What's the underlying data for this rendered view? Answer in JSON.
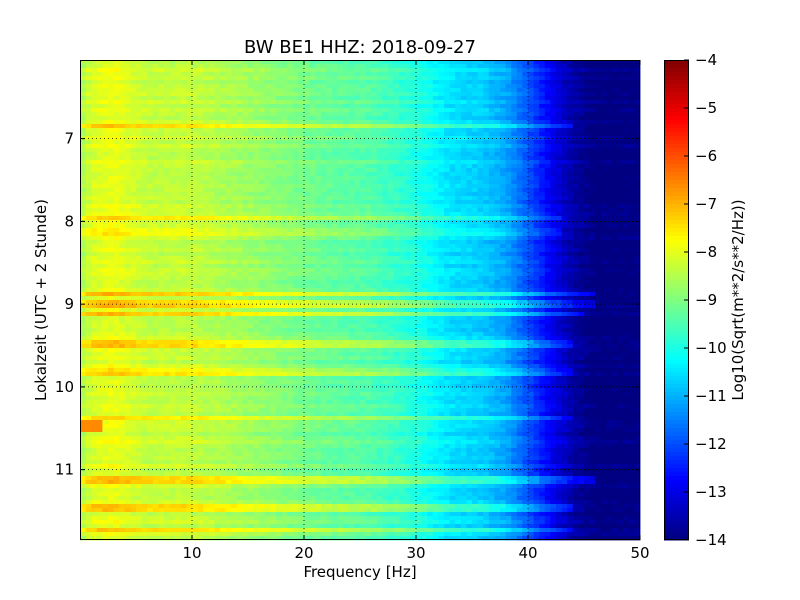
{
  "chart_data": {
    "type": "heatmap",
    "title": "BW BE1 HHZ: 2018-09-27",
    "xlabel": "Frequency [Hz]",
    "ylabel": "Lokalzeit (UTC + 2 Stunde)",
    "xlim": [
      0,
      50
    ],
    "ylim": [
      6.05,
      11.85
    ],
    "y_inverted": true,
    "x_ticks": [
      10,
      20,
      30,
      40,
      50
    ],
    "y_ticks": [
      7,
      8,
      9,
      10,
      11
    ],
    "grid": true,
    "colormap": "jet",
    "colorbar": {
      "label": "Log10(Sqrt(m**2/s**2/Hz))",
      "range": [
        -14,
        -4
      ],
      "ticks": [
        -4,
        -5,
        -6,
        -7,
        -8,
        -9,
        -10,
        -11,
        -12,
        -13,
        -14
      ]
    },
    "spectrum_profile": [
      {
        "freq": 0,
        "value": -8.6
      },
      {
        "freq": 1,
        "value": -8.1
      },
      {
        "freq": 3,
        "value": -7.9
      },
      {
        "freq": 6,
        "value": -8.3
      },
      {
        "freq": 10,
        "value": -8.3
      },
      {
        "freq": 14,
        "value": -8.6
      },
      {
        "freq": 18,
        "value": -8.9
      },
      {
        "freq": 22,
        "value": -9.2
      },
      {
        "freq": 26,
        "value": -9.4
      },
      {
        "freq": 30,
        "value": -9.9
      },
      {
        "freq": 33,
        "value": -10.5
      },
      {
        "freq": 36,
        "value": -10.7
      },
      {
        "freq": 38,
        "value": -11.1
      },
      {
        "freq": 40,
        "value": -11.9
      },
      {
        "freq": 42,
        "value": -12.8
      },
      {
        "freq": 44,
        "value": -13.6
      },
      {
        "freq": 46,
        "value": -14
      },
      {
        "freq": 50,
        "value": -14
      }
    ],
    "bands": [
      {
        "time": 6.85,
        "fmax": 44,
        "offset": 0.9
      },
      {
        "time": 7.97,
        "fmax": 43,
        "offset": 0.6
      },
      {
        "time": 8.12,
        "fmax": 43,
        "offset": 0.5
      },
      {
        "time": 8.88,
        "fmax": 46,
        "offset": 1.0
      },
      {
        "time": 8.99,
        "fmax": 46,
        "offset": 0.9
      },
      {
        "time": 9.12,
        "fmax": 45,
        "offset": 0.9
      },
      {
        "time": 9.47,
        "fmax": 44,
        "offset": 0.8
      },
      {
        "time": 9.82,
        "fmax": 44,
        "offset": 0.7
      },
      {
        "time": 10.38,
        "fmax": 44,
        "offset": 0.8
      },
      {
        "time": 11.12,
        "fmax": 46,
        "offset": 1.0
      },
      {
        "time": 11.47,
        "fmax": 44,
        "offset": 0.8
      },
      {
        "time": 11.72,
        "fmax": 44,
        "offset": 0.7
      }
    ],
    "hotspot": {
      "freq": 1.2,
      "time": 10.48,
      "value": -6.6
    }
  }
}
